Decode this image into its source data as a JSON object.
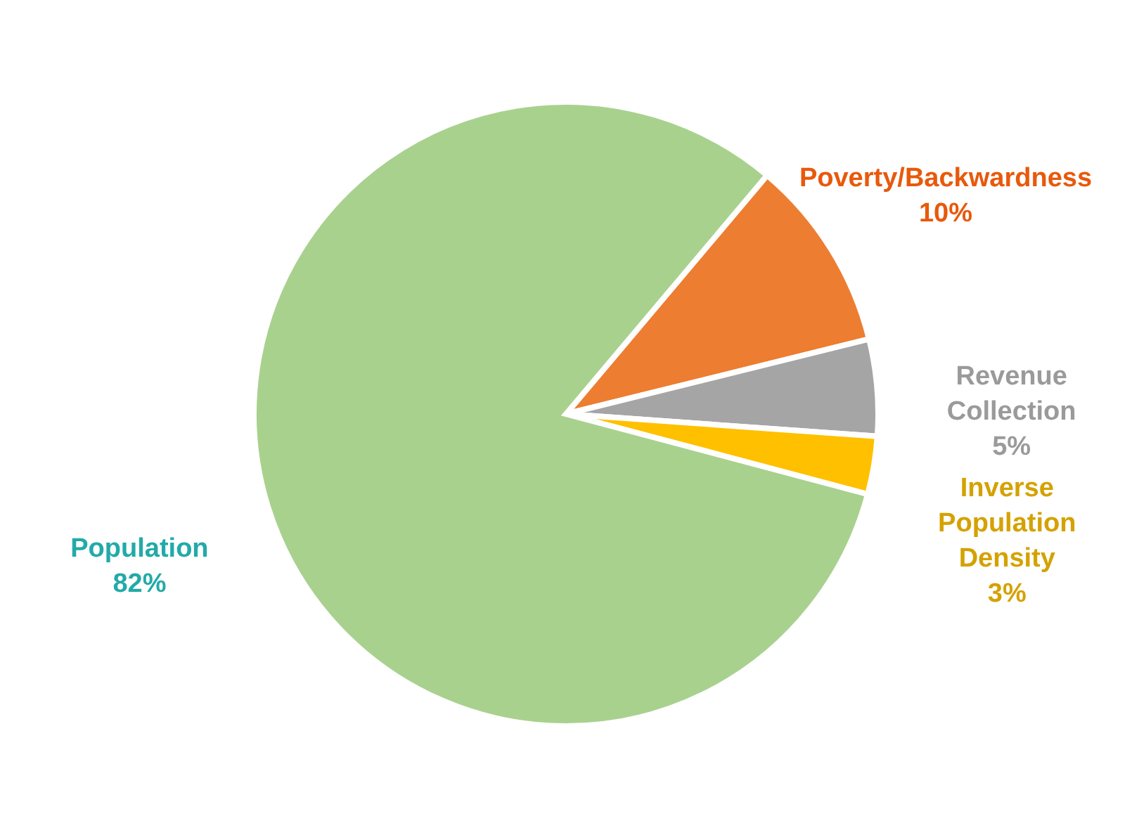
{
  "chart_data": {
    "type": "pie",
    "categories": [
      "Poverty/Backwardness",
      "Revenue Collection",
      "Inverse Population Density",
      "Population"
    ],
    "values": [
      10,
      5,
      3,
      82
    ],
    "colors": [
      "#ed7d31",
      "#a5a5a5",
      "#ffc000",
      "#a9d18e"
    ],
    "value_labels": [
      "10%",
      "5%",
      "3%",
      "82%"
    ]
  }
}
